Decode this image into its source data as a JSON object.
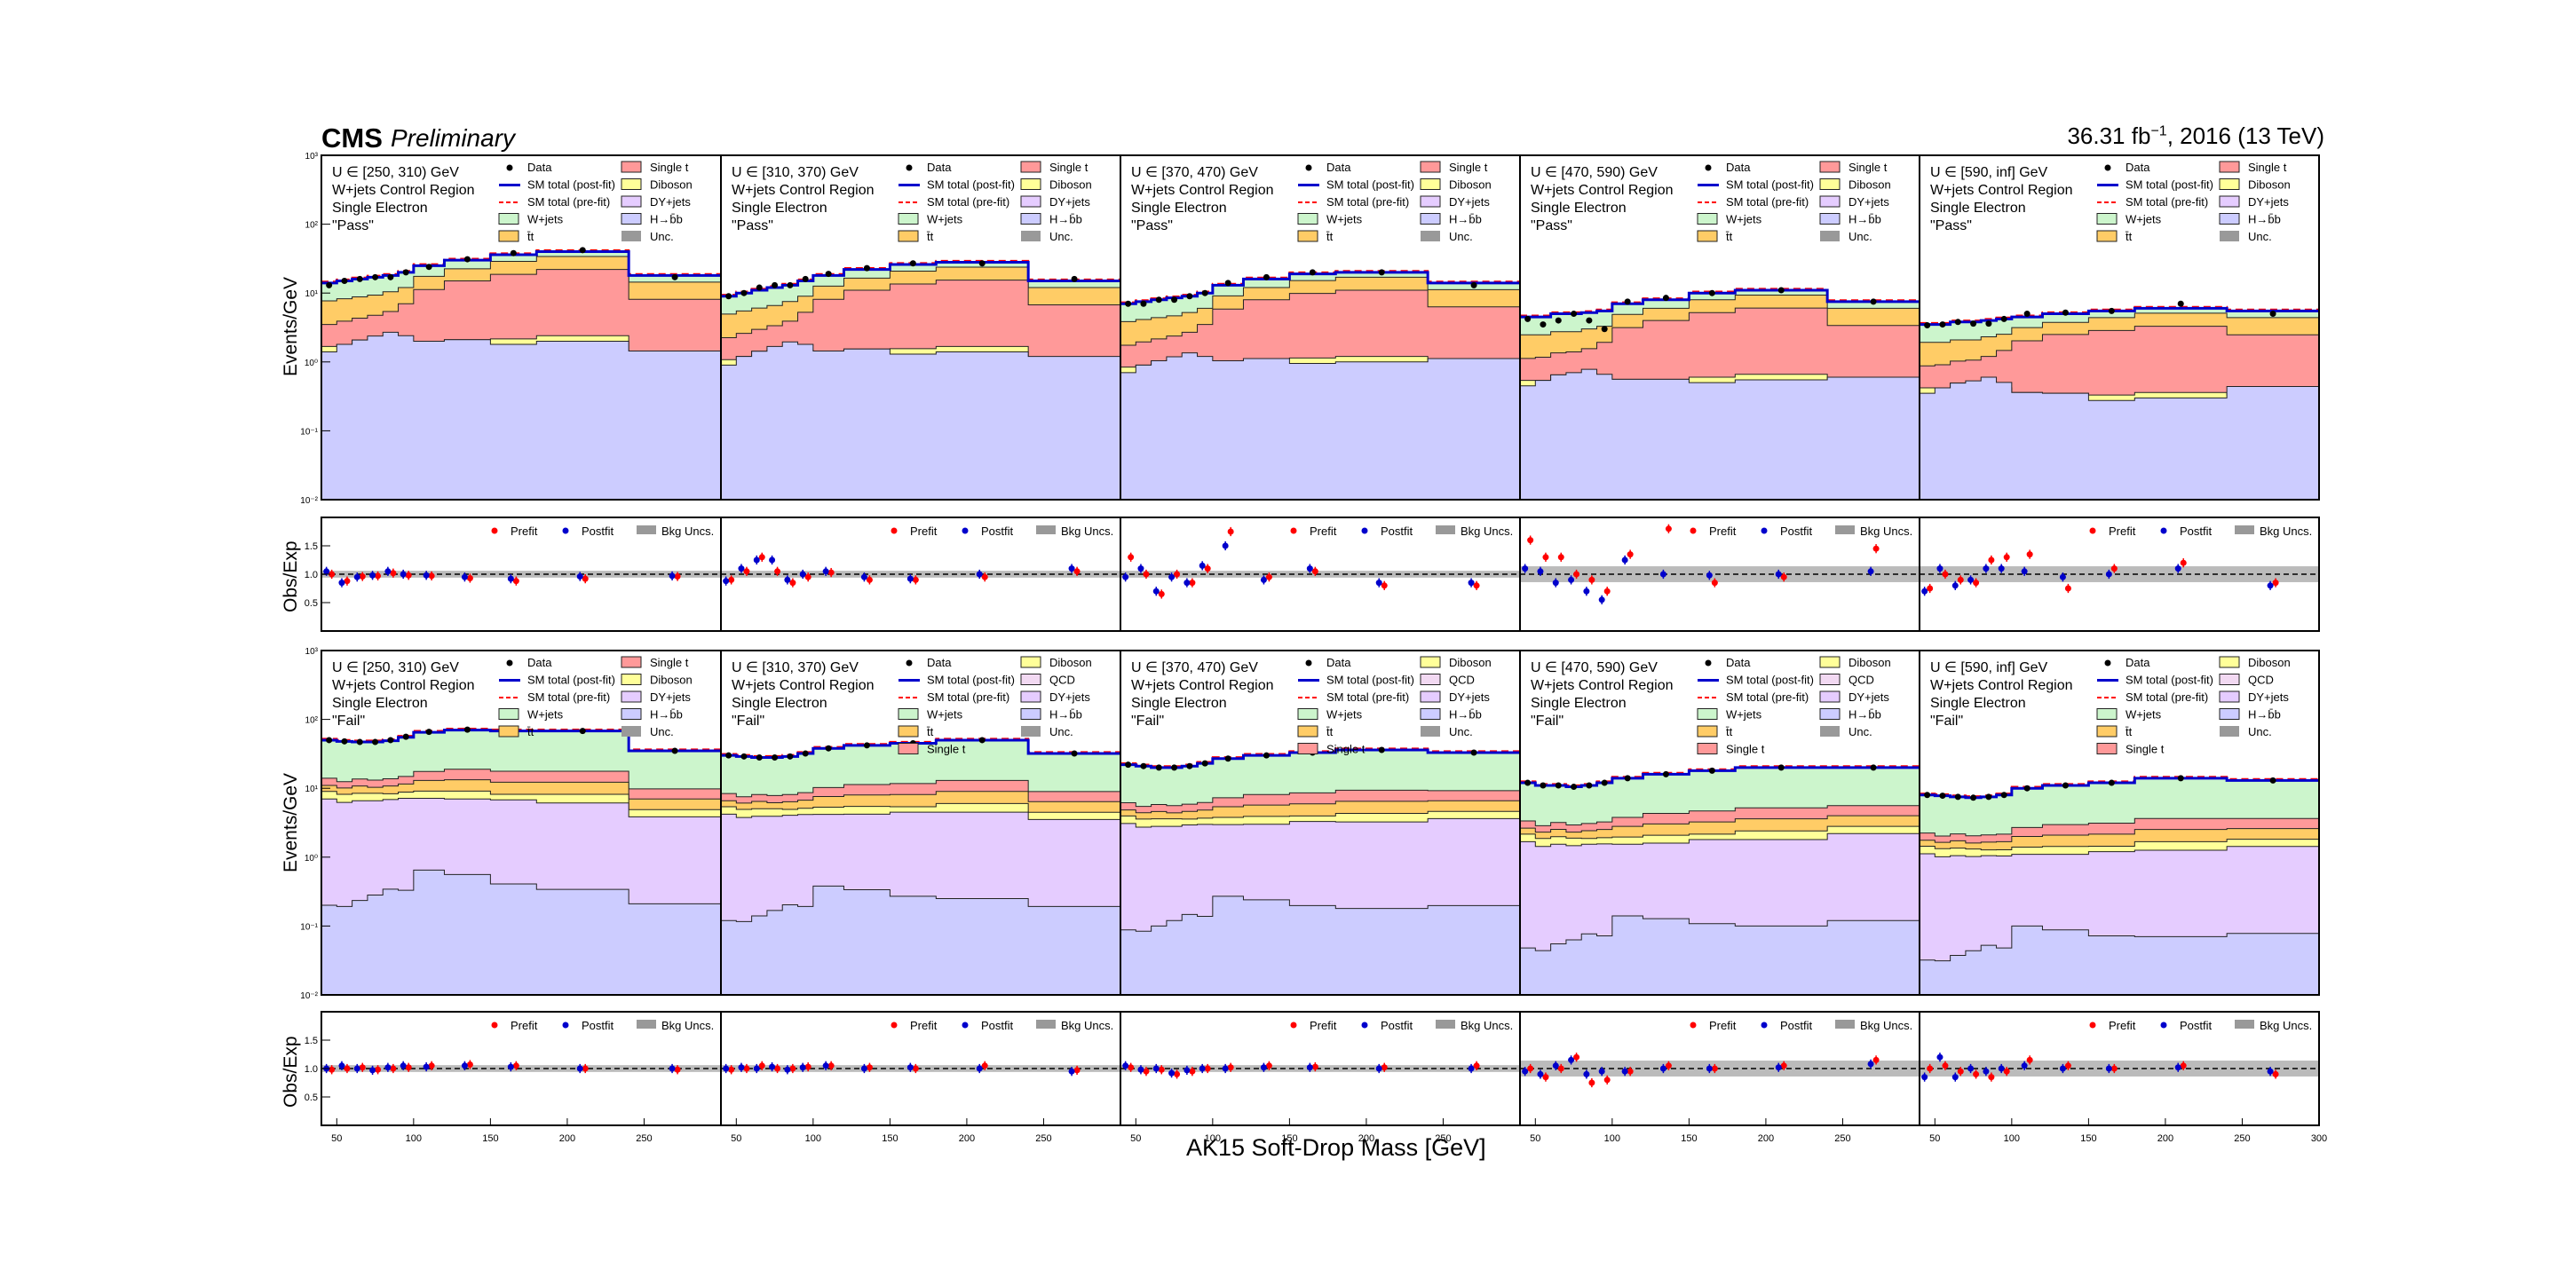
{
  "header": {
    "experiment": "CMS",
    "status": "Preliminary",
    "lumi_main": "36.31 fb",
    "lumi_exp": "−1",
    "lumi_tail": ", 2016 (13 TeV)"
  },
  "axis_labels": {
    "x_title": "AK15 Soft-Drop Mass [GeV]",
    "y_main": "Events/GeV",
    "y_ratio": "Obs/Exp"
  },
  "ticks": {
    "x": [
      "50",
      "100",
      "150",
      "200",
      "250",
      "300"
    ],
    "ratio": [
      "0.5",
      "1.0",
      "1.5"
    ],
    "main_exp": [
      "10⁻²",
      "10⁻¹",
      "10⁰",
      "10¹",
      "10²",
      "10³"
    ]
  },
  "legend": {
    "data": "Data",
    "sm_post": "SM total (post-fit)",
    "sm_pre": "SM total (pre-fit)",
    "wjets": "W+jets",
    "ttbar": "t̄t",
    "single_t": "Single t",
    "diboson": "Diboson",
    "dyjets": "DY+jets",
    "hbb": "H→b̄b",
    "unc": "Unc.",
    "qcd": "QCD",
    "prefit": "Prefit",
    "postfit": "Postfit",
    "bkg_unc": "Bkg Uncs."
  },
  "region_text": {
    "line2": "W+jets Control Region",
    "line3": "Single Electron",
    "pass": "\"Pass\"",
    "fail": "\"Fail\""
  },
  "colors": {
    "wjets": "#ccf5cc",
    "ttbar": "#ffcc66",
    "single_t": "#ff9999",
    "diboson": "#ffff99",
    "dyjets": "#e5ccff",
    "hbb": "#ccccff",
    "qcd": "#f2d9f2",
    "sm_post": "#0000cc",
    "sm_pre": "#ff0000",
    "unc": "#999999"
  },
  "chart_data": {
    "type": "area",
    "x_label": "AK15 Soft-Drop Mass [GeV]",
    "x_bins": [
      40,
      50,
      60,
      70,
      80,
      90,
      100,
      120,
      150,
      180,
      240,
      300
    ],
    "xlim": [
      40,
      300
    ],
    "ylim_main": [
      0.01,
      1000
    ],
    "y_scale": "log",
    "ylim_ratio": [
      0,
      2
    ],
    "columns": [
      {
        "label": "U ∈ [250, 310) GeV"
      },
      {
        "label": "U ∈ [310, 370) GeV"
      },
      {
        "label": "U ∈ [370, 470) GeV"
      },
      {
        "label": "U ∈ [470, 590) GeV"
      },
      {
        "label": "U ∈ [590, inf] GeV"
      }
    ],
    "pass": [
      {
        "total": [
          14,
          15,
          16,
          17,
          18,
          20,
          25,
          30,
          36,
          40,
          18
        ],
        "data": [
          13,
          15,
          16,
          17,
          17,
          20,
          24,
          31,
          38,
          42,
          17
        ]
      },
      {
        "total": [
          9,
          10,
          11,
          12,
          13,
          15,
          18,
          22,
          26,
          28,
          15
        ],
        "data": [
          9,
          10,
          12,
          13,
          13,
          16,
          19,
          23,
          27,
          27,
          16
        ]
      },
      {
        "total": [
          7,
          7.5,
          8,
          8.5,
          9,
          10,
          13,
          16,
          19,
          20,
          14
        ],
        "data": [
          7,
          7,
          8,
          8,
          9,
          10,
          14,
          17,
          20,
          20,
          13
        ]
      },
      {
        "total": [
          4.5,
          4.5,
          5,
          5,
          5.2,
          5.5,
          7,
          8,
          10,
          11,
          7.5
        ],
        "data": [
          4.2,
          3.5,
          4,
          5,
          4,
          3,
          7.5,
          8.5,
          10,
          11,
          7.5
        ]
      },
      {
        "total": [
          3.5,
          3.5,
          3.8,
          3.8,
          4,
          4.2,
          4.5,
          5,
          5.5,
          6,
          5.5
        ],
        "data": [
          3.4,
          3.5,
          3.8,
          3.6,
          3.6,
          4.2,
          5,
          5.2,
          5.5,
          7,
          5
        ]
      }
    ],
    "fail": [
      {
        "total": [
          50,
          48,
          47,
          47,
          49,
          55,
          65,
          70,
          68,
          68,
          35
        ],
        "data": [
          50,
          48,
          47,
          47,
          50,
          56,
          66,
          71,
          68,
          68,
          35
        ]
      },
      {
        "total": [
          30,
          29,
          28,
          28,
          29,
          32,
          38,
          42,
          45,
          50,
          32
        ],
        "data": [
          30,
          29,
          28,
          28,
          29,
          32,
          38,
          42,
          45,
          50,
          32
        ]
      },
      {
        "total": [
          22,
          21,
          20,
          20,
          21,
          23,
          27,
          30,
          33,
          36,
          33
        ],
        "data": [
          22,
          21,
          20,
          20,
          21,
          23,
          27,
          30,
          33,
          36,
          33
        ]
      },
      {
        "total": [
          12,
          11,
          11,
          10.5,
          11,
          12,
          14,
          16,
          18,
          20,
          20
        ],
        "data": [
          12,
          11,
          11,
          10.5,
          11,
          12,
          14,
          16,
          18,
          20,
          20
        ]
      },
      {
        "total": [
          8,
          7.8,
          7.5,
          7.3,
          7.5,
          8,
          10,
          11,
          12,
          14,
          13
        ],
        "data": [
          8,
          7.8,
          7.5,
          7.3,
          7.5,
          8,
          10,
          11,
          12,
          14,
          13
        ]
      }
    ],
    "ratio_pass": [
      {
        "postfit": [
          1.05,
          0.85,
          0.95,
          0.98,
          1.05,
          1.0,
          0.98,
          0.95,
          0.92,
          0.96,
          0.97
        ],
        "prefit": [
          1.0,
          0.88,
          0.96,
          0.97,
          1.02,
          0.98,
          0.97,
          0.93,
          0.88,
          0.92,
          0.96
        ]
      },
      {
        "postfit": [
          0.88,
          1.1,
          1.25,
          1.25,
          0.9,
          1.0,
          1.05,
          0.95,
          0.92,
          1.0,
          1.1
        ],
        "prefit": [
          0.9,
          1.05,
          1.3,
          1.05,
          0.85,
          0.95,
          1.03,
          0.9,
          0.9,
          0.95,
          1.05
        ]
      },
      {
        "postfit": [
          0.95,
          1.1,
          0.7,
          0.95,
          0.85,
          1.15,
          1.5,
          0.9,
          1.1,
          0.85,
          0.85
        ],
        "prefit": [
          1.3,
          1.0,
          0.65,
          1.0,
          0.85,
          1.1,
          1.75,
          0.95,
          1.05,
          0.8,
          0.8
        ]
      },
      {
        "postfit": [
          1.1,
          1.05,
          0.85,
          0.9,
          0.7,
          0.55,
          1.25,
          1.0,
          0.98,
          1.0,
          1.05
        ],
        "prefit": [
          1.6,
          1.3,
          1.3,
          1.0,
          0.9,
          0.7,
          1.35,
          1.8,
          0.85,
          0.95,
          1.45
        ]
      },
      {
        "postfit": [
          0.7,
          1.1,
          0.8,
          0.9,
          1.1,
          1.1,
          1.05,
          0.95,
          1.0,
          1.1,
          0.8
        ],
        "prefit": [
          0.75,
          1.0,
          0.9,
          0.85,
          1.25,
          1.3,
          1.35,
          0.75,
          1.1,
          1.2,
          0.85
        ]
      }
    ],
    "ratio_fail": [
      {
        "postfit": [
          1.0,
          1.05,
          1.0,
          0.97,
          1.02,
          1.05,
          1.03,
          1.05,
          1.03,
          1.0,
          1.0
        ],
        "prefit": [
          0.98,
          1.0,
          1.02,
          0.98,
          1.0,
          1.02,
          1.05,
          1.07,
          1.05,
          1.0,
          0.98
        ]
      },
      {
        "postfit": [
          1.0,
          1.02,
          1.0,
          1.03,
          0.98,
          1.02,
          1.05,
          1.0,
          1.02,
          1.0,
          0.95
        ],
        "prefit": [
          0.98,
          1.0,
          1.05,
          1.0,
          1.0,
          1.03,
          1.05,
          1.02,
          1.0,
          1.05,
          0.97
        ]
      },
      {
        "postfit": [
          1.05,
          0.98,
          1.0,
          0.92,
          0.97,
          1.0,
          1.0,
          1.02,
          1.02,
          1.0,
          1.0
        ],
        "prefit": [
          1.02,
          0.95,
          0.98,
          0.9,
          0.95,
          1.0,
          1.02,
          1.05,
          1.03,
          1.02,
          1.05
        ]
      },
      {
        "postfit": [
          0.95,
          0.9,
          1.05,
          1.15,
          0.9,
          0.95,
          0.95,
          1.0,
          1.0,
          1.02,
          1.08
        ],
        "prefit": [
          1.0,
          0.85,
          1.0,
          1.2,
          0.75,
          0.8,
          0.95,
          1.05,
          1.0,
          1.05,
          1.15
        ]
      },
      {
        "postfit": [
          0.85,
          1.2,
          0.85,
          1.0,
          0.95,
          1.0,
          1.05,
          1.0,
          1.0,
          1.02,
          0.95
        ],
        "prefit": [
          1.0,
          1.05,
          0.95,
          0.9,
          0.85,
          0.95,
          1.15,
          1.05,
          1.0,
          1.05,
          0.9
        ]
      }
    ]
  }
}
